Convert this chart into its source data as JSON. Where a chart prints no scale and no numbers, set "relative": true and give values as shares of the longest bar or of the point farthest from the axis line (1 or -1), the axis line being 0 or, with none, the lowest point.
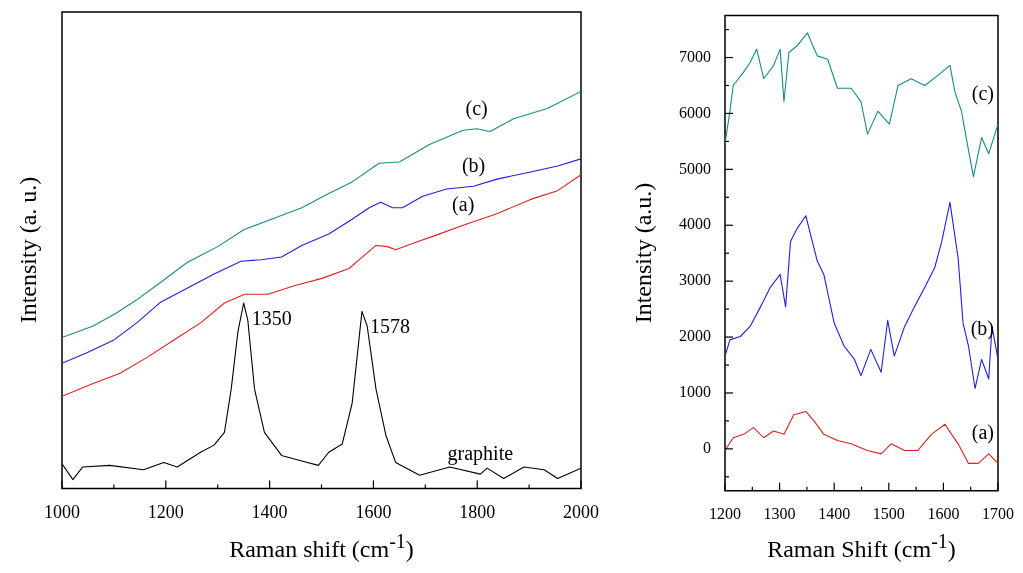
{
  "chart_data": [
    {
      "type": "line",
      "relative": true,
      "xlabel": "Raman shift (cm$^{-1}$)",
      "ylabel": "Intensity (a. u.)",
      "xlim": [
        1000,
        2000
      ],
      "xticks": [
        1000,
        {
          "value": 1100,
          "label": null
        },
        1200,
        {
          "value": 1300,
          "label": null
        },
        1400,
        {
          "value": 1500,
          "label": null
        },
        1600,
        {
          "value": 1700,
          "label": null
        },
        1800,
        {
          "value": 1900,
          "label": null
        },
        2000
      ],
      "marker": "none",
      "series": [
        {
          "name": "graphite",
          "color": "#000000",
          "x": [
            1000,
            1021,
            1040,
            1092,
            1157,
            1196,
            1222,
            1267,
            1293,
            1313,
            1326,
            1339,
            1350,
            1358,
            1371,
            1390,
            1423,
            1462,
            1494,
            1514,
            1540,
            1559,
            1572,
            1578,
            1588,
            1605,
            1624,
            1643,
            1689,
            1747,
            1806,
            1819,
            1851,
            1890,
            1929,
            1955,
            2000
          ],
          "values": [
            0.062,
            0.022,
            0.054,
            0.058,
            0.047,
            0.065,
            0.054,
            0.091,
            0.109,
            0.141,
            0.25,
            0.395,
            0.467,
            0.424,
            0.25,
            0.141,
            0.083,
            0.069,
            0.058,
            0.091,
            0.112,
            0.214,
            0.373,
            0.446,
            0.409,
            0.25,
            0.134,
            0.065,
            0.033,
            0.054,
            0.036,
            0.051,
            0.025,
            0.054,
            0.047,
            0.025,
            0.051
          ]
        },
        {
          "name": "(a)",
          "color": "#e02020",
          "x": [
            1000,
            1060,
            1112,
            1164,
            1215,
            1267,
            1313,
            1352,
            1397,
            1449,
            1501,
            1553,
            1579,
            1605,
            1627,
            1643,
            1682,
            1721,
            1773,
            1838,
            1903,
            1955,
            2000
          ],
          "values": [
            0.232,
            0.264,
            0.29,
            0.33,
            0.373,
            0.417,
            0.467,
            0.489,
            0.489,
            0.511,
            0.529,
            0.554,
            0.583,
            0.612,
            0.609,
            0.601,
            0.62,
            0.638,
            0.663,
            0.692,
            0.728,
            0.75,
            0.79
          ]
        },
        {
          "name": "(b)",
          "color": "#1f1fe0",
          "x": [
            1000,
            1047,
            1099,
            1144,
            1189,
            1241,
            1293,
            1345,
            1384,
            1423,
            1462,
            1514,
            1559,
            1592,
            1614,
            1637,
            1656,
            1695,
            1741,
            1793,
            1838,
            1903,
            1955,
            2000
          ],
          "values": [
            0.315,
            0.341,
            0.373,
            0.417,
            0.468,
            0.504,
            0.54,
            0.572,
            0.576,
            0.583,
            0.612,
            0.641,
            0.678,
            0.707,
            0.721,
            0.707,
            0.707,
            0.736,
            0.754,
            0.761,
            0.779,
            0.797,
            0.812,
            0.83
          ]
        },
        {
          "name": "(c)",
          "color": "#1a8a84",
          "x": [
            1000,
            1060,
            1105,
            1144,
            1189,
            1241,
            1300,
            1351,
            1410,
            1462,
            1514,
            1559,
            1611,
            1650,
            1708,
            1773,
            1799,
            1825,
            1870,
            1935,
            2000
          ],
          "values": [
            0.38,
            0.409,
            0.442,
            0.475,
            0.518,
            0.569,
            0.609,
            0.652,
            0.681,
            0.707,
            0.743,
            0.772,
            0.819,
            0.822,
            0.866,
            0.902,
            0.906,
            0.899,
            0.931,
            0.957,
            1.0
          ]
        }
      ],
      "annotations": [
        {
          "text": "1350",
          "x": 1350,
          "y": 0.467
        },
        {
          "text": "1578",
          "x": 1578,
          "y": 0.446
        }
      ]
    },
    {
      "type": "line",
      "xlabel": "Raman Shift (cm$^{-1}$)",
      "ylabel": "Intensity (a.u.)",
      "xlim": [
        1200,
        1700
      ],
      "xticks": [
        1200,
        {
          "value": 1250,
          "label": null
        },
        1300,
        {
          "value": 1350,
          "label": null
        },
        1400,
        {
          "value": 1450,
          "label": null
        },
        1500,
        {
          "value": 1550,
          "label": null
        },
        1600,
        {
          "value": 1650,
          "label": null
        },
        1700
      ],
      "ylim": [
        -750,
        7750
      ],
      "yticks": [
        {
          "value": -500,
          "label": null
        },
        0,
        {
          "value": 500,
          "label": null
        },
        1000,
        {
          "value": 1500,
          "label": null
        },
        2000,
        {
          "value": 2500,
          "label": null
        },
        3000,
        {
          "value": 3500,
          "label": null
        },
        4000,
        {
          "value": 4500,
          "label": null
        },
        5000,
        {
          "value": 5500,
          "label": null
        },
        6000,
        {
          "value": 6500,
          "label": null
        },
        7000,
        {
          "value": 7500,
          "label": null
        }
      ],
      "marker": "none",
      "series": [
        {
          "name": "(c)",
          "color": "#1a8a84",
          "x": [
            1200,
            1209,
            1215,
            1234,
            1246,
            1258,
            1271,
            1289,
            1301,
            1308,
            1317,
            1332,
            1351,
            1369,
            1388,
            1406,
            1431,
            1449,
            1461,
            1480,
            1501,
            1517,
            1541,
            1566,
            1590,
            1612,
            1621,
            1633,
            1646,
            1655,
            1670,
            1683,
            1700
          ],
          "values": [
            5460,
            6040,
            6500,
            6740,
            6910,
            7150,
            6620,
            6860,
            7150,
            6210,
            7090,
            7210,
            7440,
            7030,
            6970,
            6450,
            6450,
            6210,
            5630,
            6040,
            5810,
            6500,
            6620,
            6500,
            6680,
            6860,
            6390,
            6040,
            5340,
            4870,
            5570,
            5280,
            5810
          ]
        },
        {
          "name": "(b)",
          "color": "#1f1fe0",
          "x": [
            1200,
            1209,
            1228,
            1246,
            1265,
            1283,
            1301,
            1311,
            1320,
            1332,
            1348,
            1357,
            1369,
            1381,
            1400,
            1418,
            1437,
            1449,
            1467,
            1486,
            1498,
            1510,
            1529,
            1547,
            1566,
            1584,
            1597,
            1612,
            1627,
            1636,
            1646,
            1658,
            1670,
            1683,
            1689,
            1700
          ],
          "values": [
            1660,
            1950,
            2010,
            2190,
            2540,
            2890,
            3120,
            2540,
            3710,
            3940,
            4170,
            3820,
            3360,
            3120,
            2250,
            1840,
            1600,
            1310,
            1780,
            1370,
            2300,
            1660,
            2190,
            2540,
            2890,
            3240,
            3710,
            4410,
            3410,
            2250,
            1840,
            1080,
            1600,
            1250,
            2190,
            1600
          ]
        },
        {
          "name": "(a)",
          "color": "#e02020",
          "x": [
            1200,
            1215,
            1234,
            1252,
            1271,
            1289,
            1308,
            1326,
            1348,
            1363,
            1381,
            1406,
            1431,
            1461,
            1486,
            1504,
            1529,
            1553,
            1578,
            1603,
            1615,
            1627,
            1646,
            1664,
            1683,
            1700
          ],
          "values": [
            -30,
            200,
            260,
            380,
            200,
            320,
            260,
            610,
            670,
            500,
            260,
            150,
            90,
            -30,
            -90,
            90,
            -30,
            -30,
            260,
            440,
            260,
            90,
            -260,
            -260,
            -90,
            -260
          ]
        }
      ]
    }
  ]
}
